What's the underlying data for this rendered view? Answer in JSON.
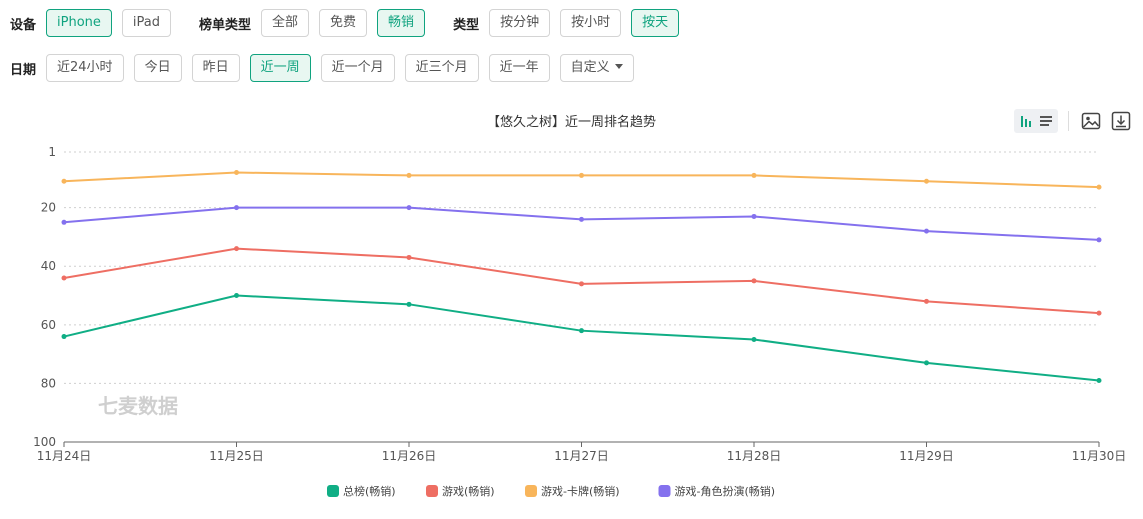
{
  "filters": {
    "device": {
      "label": "设备",
      "options": [
        "iPhone",
        "iPad"
      ],
      "active": 0
    },
    "list_type": {
      "label": "榜单类型",
      "options": [
        "全部",
        "免费",
        "畅销"
      ],
      "active": 2
    },
    "type": {
      "label": "类型",
      "options": [
        "按分钟",
        "按小时",
        "按天"
      ],
      "active": 2
    },
    "date": {
      "label": "日期",
      "options": [
        "近24小时",
        "今日",
        "昨日",
        "近一周",
        "近一个月",
        "近三个月",
        "近一年"
      ],
      "active": 3,
      "custom_label": "自定义"
    }
  },
  "watermark": "七麦数据",
  "colors": {
    "accent": "#10a37f"
  },
  "chart_data": {
    "type": "line",
    "title": "【悠久之树】近一周排名趋势",
    "categories": [
      "11月24日",
      "11月25日",
      "11月26日",
      "11月27日",
      "11月28日",
      "11月29日",
      "11月30日"
    ],
    "y_ticks": [
      1,
      20,
      40,
      60,
      80,
      100
    ],
    "ylim": [
      1,
      100
    ],
    "y_inverted": true,
    "grid": true,
    "legend_position": "bottom",
    "series": [
      {
        "name": "总榜(畅销)",
        "color": "#10ae85",
        "values": [
          64,
          50,
          53,
          62,
          65,
          73,
          79
        ]
      },
      {
        "name": "游戏(畅销)",
        "color": "#ee6e63",
        "values": [
          44,
          34,
          37,
          46,
          45,
          52,
          56
        ]
      },
      {
        "name": "游戏-卡牌(畅销)",
        "color": "#f8b55b",
        "values": [
          11,
          8,
          9,
          9,
          9,
          11,
          13
        ]
      },
      {
        "name": "游戏-角色扮演(畅销)",
        "color": "#8471ee",
        "values": [
          25,
          20,
          20,
          24,
          23,
          28,
          31
        ]
      }
    ]
  }
}
